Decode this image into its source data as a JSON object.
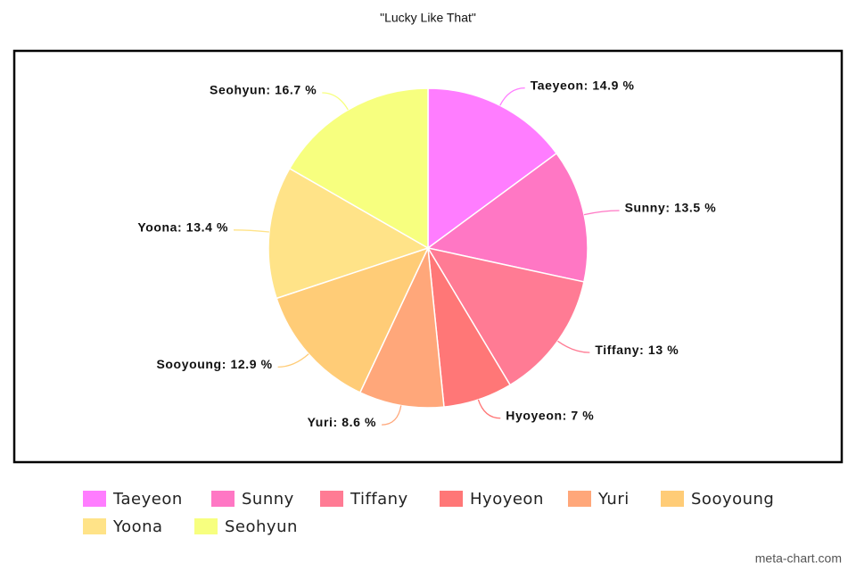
{
  "chart_data": {
    "type": "pie",
    "title": "\"Lucky Like That\"",
    "categories": [
      "Taeyeon",
      "Sunny",
      "Tiffany",
      "Hyoyeon",
      "Yuri",
      "Sooyoung",
      "Yoona",
      "Seohyun"
    ],
    "values": [
      14.9,
      13.5,
      13,
      7,
      8.6,
      12.9,
      13.4,
      16.7
    ],
    "value_labels": [
      "Taeyeon: 14.9 %",
      "Sunny: 13.5 %",
      "Tiffany: 13 %",
      "Hyoyeon: 7 %",
      "Yuri: 8.6 %",
      "Sooyoung: 12.9 %",
      "Yoona: 13.4 %",
      "Seohyun: 16.7 %"
    ],
    "colors": [
      "#ff7dff",
      "#ff77c4",
      "#ff7b94",
      "#ff7777",
      "#ffa77a",
      "#ffcc77",
      "#ffe388",
      "#f7ff7f"
    ],
    "legend": "bottom",
    "watermark": "meta-chart.com"
  }
}
